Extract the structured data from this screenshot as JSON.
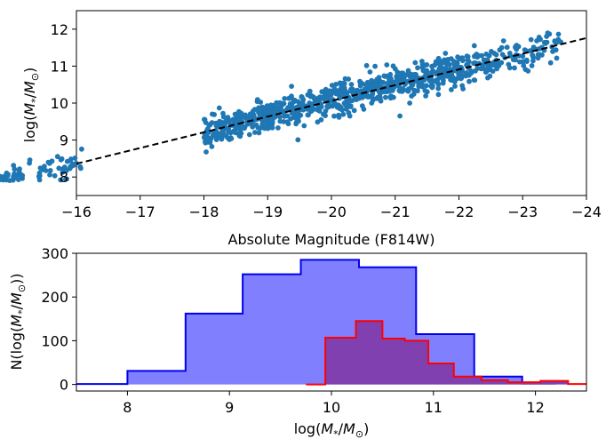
{
  "chart_data": [
    {
      "type": "scatter",
      "xlabel": "Absolute Magnitude (F814W)",
      "ylabel_parts": [
        "log(",
        "M",
        "*",
        "/",
        "M",
        "⊙",
        ")"
      ],
      "xlim": [
        -16,
        -24
      ],
      "ylim": [
        7.5,
        12.5
      ],
      "xticks": [
        -16,
        -17,
        -18,
        -19,
        -20,
        -21,
        -22,
        -23,
        -24
      ],
      "xtick_labels": [
        "−16",
        "−17",
        "−18",
        "−19",
        "−20",
        "−21",
        "−22",
        "−23",
        "−24"
      ],
      "yticks": [
        8,
        9,
        10,
        11,
        12
      ],
      "ytick_labels": [
        "8",
        "9",
        "10",
        "11",
        "12"
      ],
      "grid": false,
      "series": [
        {
          "kind": "points",
          "color": "#1f77b4",
          "trend": {
            "slope": -0.428,
            "intercept": 1.52
          },
          "scatter_sigma": 0.22,
          "n_points": 1000,
          "mag_range": [
            -16.1,
            -23.6
          ]
        },
        {
          "kind": "fit-line",
          "style": "dashed",
          "color": "#000000",
          "x": [
            -16,
            -24
          ],
          "y": [
            8.36,
            11.76
          ]
        }
      ]
    },
    {
      "type": "histogram",
      "xlabel_parts": [
        "log(",
        "M",
        "*",
        "/",
        "M",
        "⊙",
        ")"
      ],
      "ylabel_parts": [
        "N(log(",
        "M",
        "*",
        "/",
        "M",
        "⊙",
        "))"
      ],
      "xlim": [
        7.5,
        12.5
      ],
      "ylim": [
        -15,
        300
      ],
      "xticks": [
        8,
        9,
        10,
        11,
        12
      ],
      "xtick_labels": [
        "8",
        "9",
        "10",
        "11",
        "12"
      ],
      "yticks": [
        0,
        100,
        200,
        300
      ],
      "ytick_labels": [
        "0",
        "100",
        "200",
        "300"
      ],
      "grid": false,
      "series": [
        {
          "edge_color": "#0000ee",
          "fill_color": "#8080ff",
          "edges": [
            7.43,
            8.0,
            8.57,
            9.13,
            9.7,
            10.27,
            10.83,
            11.4,
            11.87,
            12.2
          ],
          "counts": [
            1,
            31,
            162,
            252,
            285,
            268,
            115,
            18,
            2
          ]
        },
        {
          "edge_color": "#ff0000",
          "fill_color": "#8040b0",
          "edges": [
            9.75,
            9.94,
            10.24,
            10.5,
            10.72,
            10.95,
            11.2,
            11.47,
            11.73,
            12.05,
            12.32,
            12.5
          ],
          "counts": [
            0,
            107,
            145,
            105,
            100,
            48,
            18,
            10,
            5,
            8,
            1
          ]
        }
      ]
    }
  ]
}
